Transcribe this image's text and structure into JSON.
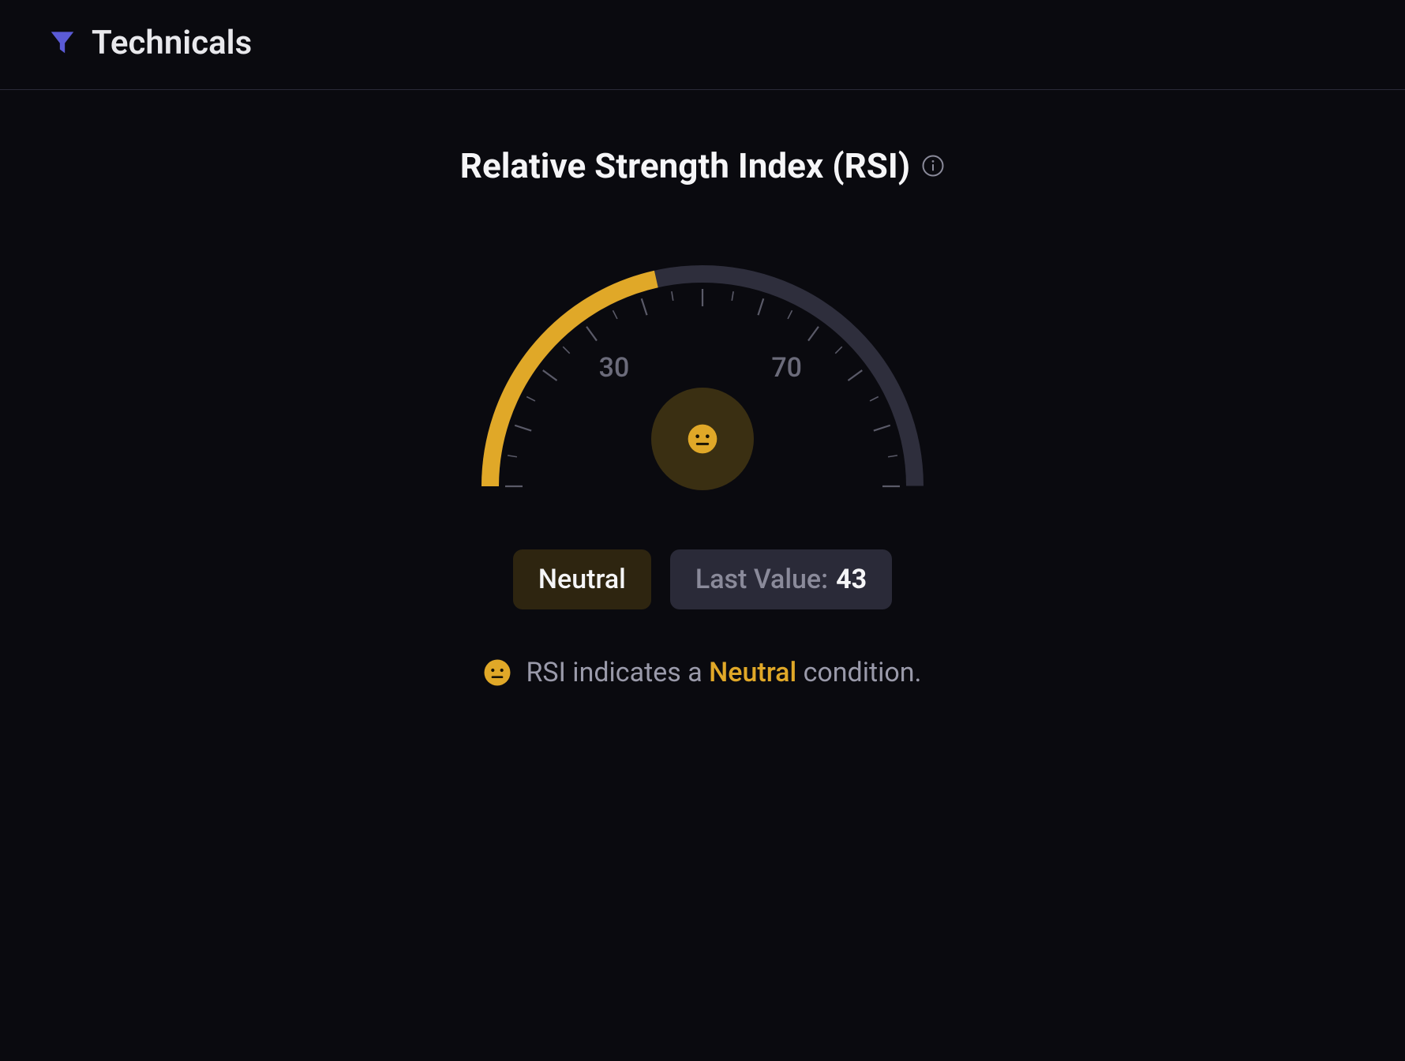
{
  "page": {
    "background_color": "#0a0a0f",
    "border_color": "#2a2a38"
  },
  "header": {
    "title": "Technicals",
    "title_color": "#e8e8ec",
    "title_fontsize": 42,
    "icon_name": "filter-icon",
    "icon_color": "#5b5bd6"
  },
  "chart": {
    "title": "Relative Strength Index (RSI)",
    "title_color": "#f5f5f7",
    "title_fontsize": 44,
    "info_icon_color": "#8a8a9a",
    "type": "gauge",
    "gauge": {
      "min": 0,
      "max": 100,
      "value": 43,
      "arc_radius_outer": 280,
      "arc_stroke_width": 22,
      "active_color": "#e0a828",
      "track_color": "#2e2e3c",
      "tick_color": "#5a5a68",
      "tick_count_major": 11,
      "tick_count_minor": 21,
      "tick_len_major": 22,
      "tick_len_minor": 12,
      "labels": [
        {
          "value": 30,
          "text": "30"
        },
        {
          "value": 70,
          "text": "70"
        }
      ],
      "label_color": "#6b6b7a",
      "label_fontsize": 34,
      "face": {
        "circle_bg": "#3a2f12",
        "circle_diameter": 130,
        "emoji_color": "#e0a828",
        "emoji_size": 40
      }
    }
  },
  "badges": {
    "status": {
      "text": "Neutral",
      "bg_color": "#2e2510",
      "text_color": "#f5f5f7"
    },
    "last_value": {
      "label": "Last Value:",
      "value": "43",
      "bg_color": "#2a2a38",
      "label_color": "#8a8a9a",
      "value_color": "#f5f5f7"
    }
  },
  "summary": {
    "prefix": "RSI indicates a ",
    "highlight": "Neutral",
    "suffix": " condition.",
    "text_color": "#9a9aaa",
    "highlight_color": "#e0a828",
    "emoji_color": "#e0a828",
    "emoji_size": 36
  }
}
